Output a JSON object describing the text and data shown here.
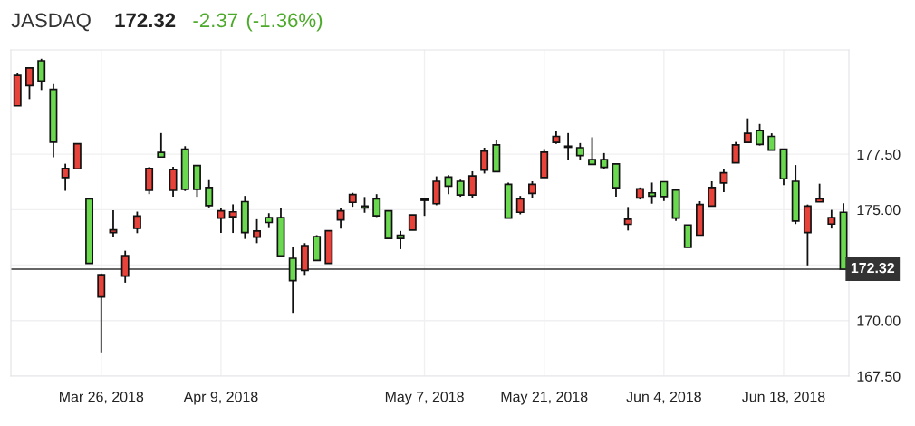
{
  "chart_data": {
    "type": "candlestick",
    "title": "JASDAQ",
    "annotations": [
      "172.32",
      "-2.37",
      "(-1.36%)"
    ],
    "categories": [
      null,
      null,
      null,
      null,
      null,
      null,
      null,
      "Mar 26, 2018",
      null,
      null,
      null,
      null,
      null,
      null,
      null,
      null,
      null,
      "Apr 9, 2018",
      null,
      null,
      null,
      null,
      null,
      null,
      null,
      null,
      null,
      null,
      null,
      null,
      null,
      null,
      null,
      null,
      "May 7, 2018",
      null,
      null,
      null,
      null,
      null,
      null,
      null,
      null,
      null,
      "May 21, 2018",
      null,
      null,
      null,
      null,
      null,
      null,
      null,
      null,
      null,
      "Jun 4, 2018",
      null,
      null,
      null,
      null,
      null,
      null,
      null,
      null,
      null,
      "Jun 18, 2018",
      null,
      null,
      null,
      null,
      null
    ],
    "ohlc": [
      [
        179.68,
        181.14,
        179.68,
        181.05
      ],
      [
        180.59,
        181.39,
        179.98,
        181.39
      ],
      [
        181.71,
        181.8,
        180.39,
        180.8
      ],
      [
        180.42,
        180.66,
        177.36,
        178.04
      ],
      [
        176.45,
        177.07,
        175.85,
        176.86
      ],
      [
        176.84,
        177.97,
        176.84,
        177.97
      ],
      [
        175.49,
        175.49,
        172.58,
        172.58
      ],
      [
        171.07,
        172.12,
        168.57,
        172.07
      ],
      [
        173.97,
        174.97,
        173.76,
        174.09
      ],
      [
        172.01,
        173.15,
        171.71,
        172.93
      ],
      [
        174.16,
        174.91,
        173.94,
        174.71
      ],
      [
        175.87,
        176.93,
        175.7,
        176.86
      ],
      [
        177.58,
        178.45,
        177.37,
        177.37
      ],
      [
        175.87,
        176.93,
        175.58,
        176.8
      ],
      [
        177.73,
        177.86,
        175.84,
        175.92
      ],
      [
        176.99,
        176.99,
        175.58,
        175.92
      ],
      [
        176.0,
        176.33,
        175.1,
        175.18
      ],
      [
        174.62,
        175.1,
        173.95,
        174.95
      ],
      [
        174.68,
        175.24,
        173.95,
        174.9
      ],
      [
        175.36,
        175.62,
        173.68,
        173.97
      ],
      [
        173.76,
        174.57,
        173.49,
        174.04
      ],
      [
        174.64,
        174.84,
        174.21,
        174.42
      ],
      [
        174.64,
        175.1,
        172.92,
        172.92
      ],
      [
        172.81,
        173.34,
        170.35,
        171.8
      ],
      [
        172.26,
        173.49,
        172.06,
        173.38
      ],
      [
        173.78,
        173.85,
        172.71,
        172.71
      ],
      [
        172.58,
        174.05,
        172.58,
        174.05
      ],
      [
        174.54,
        175.06,
        174.15,
        174.95
      ],
      [
        175.33,
        175.76,
        175.13,
        175.68
      ],
      [
        175.16,
        175.57,
        174.86,
        175.08
      ],
      [
        175.49,
        175.7,
        174.67,
        174.72
      ],
      [
        174.95,
        174.95,
        173.7,
        173.7
      ],
      [
        173.85,
        174.04,
        173.22,
        173.7
      ],
      [
        174.08,
        174.76,
        174.08,
        174.76
      ],
      [
        175.47,
        175.5,
        174.72,
        175.42
      ],
      [
        175.27,
        176.5,
        175.2,
        176.28
      ],
      [
        176.47,
        176.55,
        175.7,
        176.06
      ],
      [
        176.28,
        176.35,
        175.58,
        175.66
      ],
      [
        175.66,
        176.73,
        175.51,
        176.52
      ],
      [
        176.78,
        177.79,
        176.63,
        177.64
      ],
      [
        177.92,
        178.14,
        176.71,
        176.71
      ],
      [
        176.14,
        176.22,
        174.62,
        174.62
      ],
      [
        174.88,
        175.62,
        174.79,
        175.49
      ],
      [
        175.73,
        176.28,
        175.51,
        176.14
      ],
      [
        176.45,
        177.73,
        176.45,
        177.59
      ],
      [
        178.03,
        178.53,
        177.96,
        178.3
      ],
      [
        177.86,
        178.45,
        177.22,
        177.81
      ],
      [
        177.79,
        178.0,
        177.22,
        177.44
      ],
      [
        177.26,
        178.26,
        177.04,
        177.04
      ],
      [
        177.26,
        177.55,
        176.82,
        176.91
      ],
      [
        177.06,
        177.06,
        175.58,
        175.99
      ],
      [
        174.34,
        175.12,
        174.06,
        174.57
      ],
      [
        175.53,
        176.0,
        175.46,
        175.94
      ],
      [
        175.76,
        176.22,
        175.27,
        175.61
      ],
      [
        176.26,
        176.26,
        175.39,
        175.59
      ],
      [
        175.88,
        175.94,
        174.49,
        174.62
      ],
      [
        174.31,
        174.31,
        173.3,
        173.3
      ],
      [
        173.85,
        175.38,
        173.85,
        175.23
      ],
      [
        175.16,
        176.28,
        175.16,
        176.0
      ],
      [
        176.2,
        176.81,
        175.79,
        176.66
      ],
      [
        177.11,
        178.05,
        177.11,
        177.92
      ],
      [
        178.03,
        179.11,
        178.03,
        178.44
      ],
      [
        178.57,
        178.86,
        177.89,
        177.94
      ],
      [
        178.3,
        178.44,
        177.68,
        177.68
      ],
      [
        177.73,
        177.73,
        176.11,
        176.39
      ],
      [
        176.28,
        177.01,
        174.35,
        174.49
      ],
      [
        173.97,
        175.23,
        172.49,
        175.16
      ],
      [
        175.35,
        176.17,
        175.35,
        175.49
      ],
      [
        174.35,
        174.99,
        174.15,
        174.64
      ],
      [
        174.88,
        175.29,
        172.32,
        172.32
      ]
    ],
    "colors": [
      "#e8433a",
      "#e8433a",
      "#6ad94f",
      "#6ad94f",
      "#e8433a",
      "#e8433a",
      "#6ad94f",
      "#e8433a",
      "#e8433a",
      "#e8433a",
      "#e8433a",
      "#e8433a",
      "#6ad94f",
      "#e8433a",
      "#6ad94f",
      "#6ad94f",
      "#6ad94f",
      "#e8433a",
      "#e8433a",
      "#6ad94f",
      "#e8433a",
      "#6ad94f",
      "#6ad94f",
      "#6ad94f",
      "#e8433a",
      "#6ad94f",
      "#e8433a",
      "#e8433a",
      "#e8433a",
      "#6ad94f",
      "#6ad94f",
      "#6ad94f",
      "#6ad94f",
      "#e8433a",
      "#6ad94f",
      "#e8433a",
      "#6ad94f",
      "#6ad94f",
      "#e8433a",
      "#e8433a",
      "#6ad94f",
      "#6ad94f",
      "#e8433a",
      "#e8433a",
      "#e8433a",
      "#e8433a",
      "#6ad94f",
      "#6ad94f",
      "#6ad94f",
      "#6ad94f",
      "#6ad94f",
      "#e8433a",
      "#e8433a",
      "#6ad94f",
      "#6ad94f",
      "#6ad94f",
      "#6ad94f",
      "#e8433a",
      "#e8433a",
      "#e8433a",
      "#e8433a",
      "#e8433a",
      "#6ad94f",
      "#6ad94f",
      "#6ad94f",
      "#6ad94f",
      "#e8433a",
      "#e8433a",
      "#e8433a",
      "#6ad94f"
    ],
    "ylim": [
      167.5,
      182.2
    ],
    "yticks": [
      {
        "value": 167.5,
        "label": "167.50"
      },
      {
        "value": 170,
        "label": "170.00"
      },
      {
        "value": 172.5,
        "label": null
      },
      {
        "value": 175,
        "label": "175.00"
      },
      {
        "value": 177.5,
        "label": "177.50"
      }
    ],
    "ref_lines": [
      {
        "axis": "y",
        "value": 172.32,
        "label": "172.32",
        "color": "#333333"
      }
    ],
    "grid": true
  }
}
